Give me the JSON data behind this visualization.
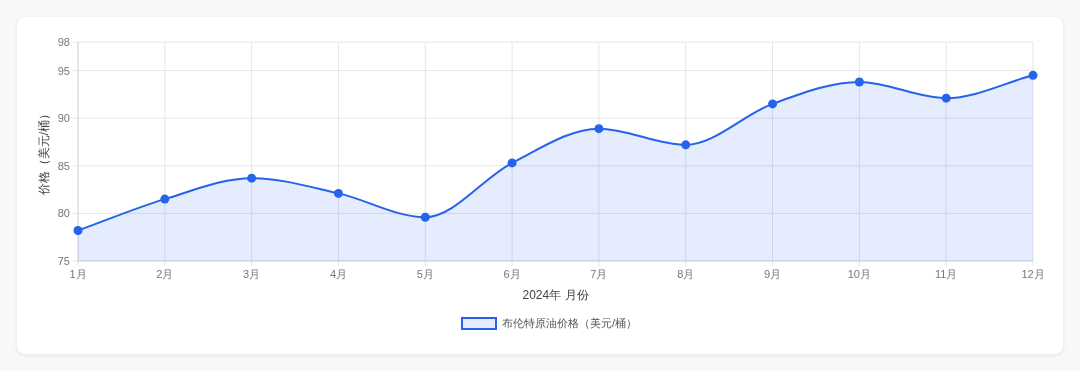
{
  "chart_data": {
    "type": "area",
    "xlabel": "2024年 月份",
    "ylabel": "价格（美元/桶）",
    "categories": [
      "1月",
      "2月",
      "3月",
      "4月",
      "5月",
      "6月",
      "7月",
      "8月",
      "9月",
      "10月",
      "11月",
      "12月"
    ],
    "series": [
      {
        "name": "布伦特原油价格（美元/桶）",
        "color": "#2563eb",
        "values": [
          78.2,
          81.5,
          83.7,
          82.1,
          79.6,
          85.3,
          88.9,
          87.2,
          91.5,
          93.8,
          92.1,
          94.5
        ]
      }
    ],
    "ylim": [
      75,
      98
    ],
    "yticks": [
      75,
      80,
      85,
      90,
      95,
      98
    ],
    "grid": true,
    "legend": "bottom",
    "marker": "circle",
    "line_style": "solid"
  }
}
